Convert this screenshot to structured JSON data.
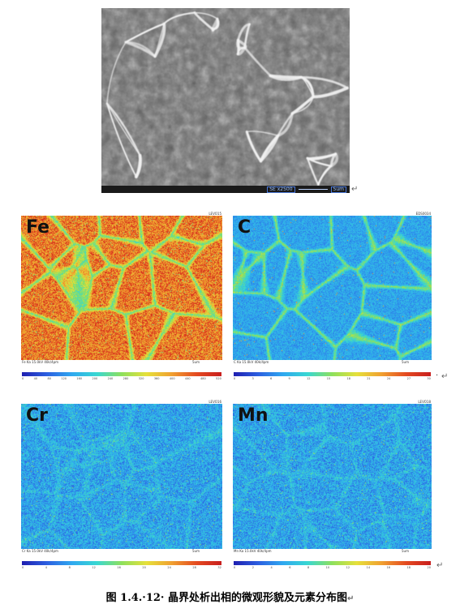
{
  "sem": {
    "bar_detector": "SE x2500",
    "bar_scale": "5um"
  },
  "maps": [
    {
      "element": "Fe",
      "header": "LEVO15",
      "footer": "Fe Ka  15.0kV  40k/4pm",
      "footer_right": "5um",
      "cbar_label": "c/s(cps)",
      "ticks": [
        "0",
        "40",
        "80",
        "120",
        "160",
        "200",
        "240",
        "280",
        "320",
        "360",
        "400",
        "440",
        "480",
        "520"
      ],
      "palette": "high"
    },
    {
      "element": "C",
      "header": "EDS0034",
      "footer": "C Ka  15.0kV  40k/4pm",
      "footer_right": "5um",
      "cbar_label": "c/s(cps)",
      "ticks": [
        "0",
        "3",
        "6",
        "9",
        "12",
        "15",
        "18",
        "21",
        "24",
        "27",
        "30"
      ],
      "palette": "low"
    },
    {
      "element": "Cr",
      "header": "LEVO16",
      "footer": "Cr Ka  15.0kV  40k/4pm",
      "footer_right": "5um",
      "cbar_label": "c/s(cps)",
      "ticks": [
        "0",
        "4",
        "8",
        "12",
        "16",
        "20",
        "24",
        "28",
        "32"
      ],
      "palette": "low"
    },
    {
      "element": "Mn",
      "header": "LEVO18",
      "footer": "Mn Ka  15.0kV  40k/4pm",
      "footer_right": "5um",
      "cbar_label": "c/s(cps)",
      "ticks": [
        "0",
        "2",
        "4",
        "6",
        "8",
        "10",
        "12",
        "14",
        "16",
        "18",
        "20"
      ],
      "palette": "low"
    }
  ],
  "caption": "图 1.4.·12· 晶界处析出相的微观形貌及元素分布图",
  "return_mark": "↵",
  "bullet_mark": "·"
}
